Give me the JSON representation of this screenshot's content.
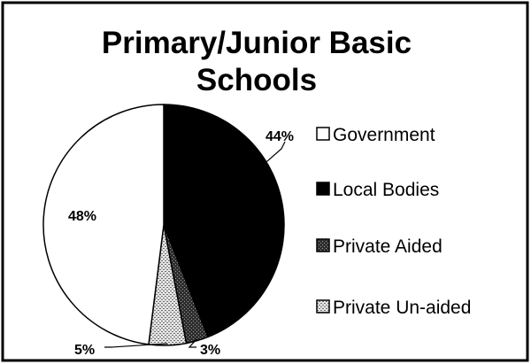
{
  "chart_data": {
    "type": "pie",
    "title": "Primary/Junior Basic Schools",
    "title_lines": [
      "Primary/Junior Basic",
      "Schools"
    ],
    "categories": [
      "Government",
      "Local Bodies",
      "Private Aided",
      "Private Un-aided"
    ],
    "values": [
      48,
      44,
      3,
      5
    ],
    "labels": [
      "48%",
      "44%",
      "3%",
      "5%"
    ],
    "legend_position": "right",
    "colors": [
      "#ffffff",
      "#000000",
      "#3a3a3a",
      "#bdbdbd"
    ],
    "fills": [
      "solid",
      "solid",
      "dark-hatch",
      "light-hatch"
    ]
  }
}
